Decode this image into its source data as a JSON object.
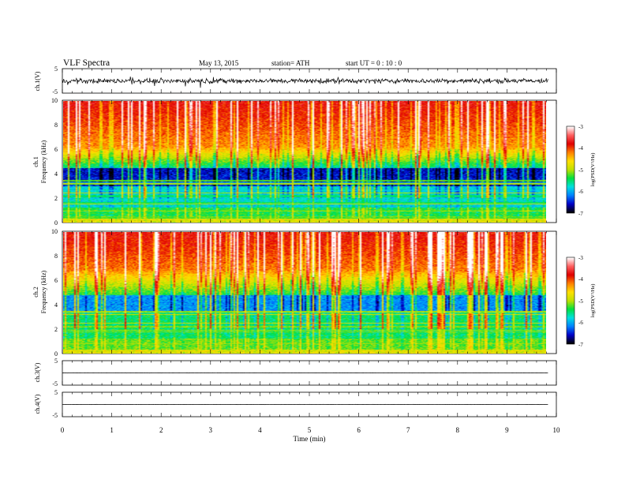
{
  "header": {
    "title": "VLF  Spectra",
    "date": "May 13, 2015",
    "station": "station= ATH",
    "start": "start  UT =   0  : 10 : 0"
  },
  "chart_data": [
    {
      "type": "line",
      "id": "ch1-waveform",
      "ylabel": "ch.1(V)",
      "ylim": [
        -5,
        5
      ],
      "yticks": [
        "5",
        "-5"
      ],
      "x_range_min": [
        0,
        9.83
      ],
      "baseline_v": 0,
      "noise_amplitude_v": 1.2,
      "color": "#000000"
    },
    {
      "type": "heatmap",
      "id": "ch1-spectrogram",
      "ylabel_line1": "ch.1",
      "ylabel_line2": "Frequency  (kHz)",
      "ylim": [
        0,
        10
      ],
      "yticks": [
        "0",
        "2",
        "4",
        "6",
        "8",
        "10"
      ],
      "x_range_min": [
        0,
        9.83
      ],
      "colorbar": {
        "label": "log(PSD(V²/Hz)",
        "range": [
          -7,
          -3
        ],
        "ticks": [
          "-3",
          "-4",
          "-5",
          "-6",
          "-7"
        ]
      }
    },
    {
      "type": "heatmap",
      "id": "ch2-spectrogram",
      "ylabel_line1": "ch.2",
      "ylabel_line2": "Frequency  (kHz)",
      "ylim": [
        0,
        10
      ],
      "yticks": [
        "0",
        "2",
        "4",
        "6",
        "8",
        "10"
      ],
      "x_range_min": [
        0,
        9.83
      ],
      "colorbar": {
        "label": "log(PSD(V²/Hz)",
        "range": [
          -7,
          -3
        ],
        "ticks": [
          "-3",
          "-4",
          "-5",
          "-6",
          "-7"
        ]
      }
    },
    {
      "type": "line",
      "id": "ch3-waveform",
      "ylabel": "ch.3(V)",
      "ylim": [
        -5,
        5
      ],
      "yticks": [
        "5",
        "-5"
      ],
      "x_range_min": [
        0,
        9.83
      ],
      "baseline_v": 0,
      "color": "#000000"
    },
    {
      "type": "line",
      "id": "ch4-waveform",
      "ylabel": "ch.4(V)",
      "ylim": [
        -5,
        5
      ],
      "yticks": [
        "5",
        "-5"
      ],
      "x_range_min": [
        0,
        9.83
      ],
      "baseline_v": 0,
      "color": "#000000"
    }
  ],
  "x_axis": {
    "label": "Time  (min)",
    "range": [
      0,
      10
    ],
    "ticks": [
      "0",
      "1",
      "2",
      "3",
      "4",
      "5",
      "6",
      "7",
      "8",
      "9",
      "10"
    ]
  },
  "colorscale": [
    "#000000",
    "#0000c8",
    "#0080ff",
    "#00e0e0",
    "#00e040",
    "#c0e000",
    "#ffe000",
    "#ff8000",
    "#e00000",
    "#ff6060",
    "#ffffff"
  ]
}
